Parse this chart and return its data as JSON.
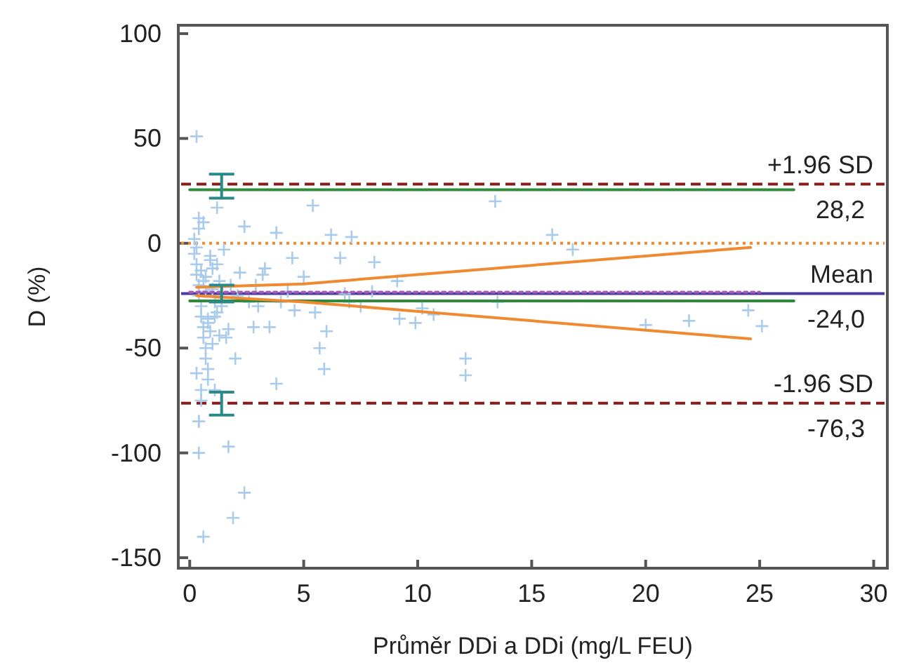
{
  "chart_data": {
    "type": "scatter",
    "xlabel": "Průměr DDi a DDi (mg/L FEU)",
    "ylabel": "D  (%)",
    "xlim": [
      -0.5,
      30.6
    ],
    "ylim": [
      -155,
      104
    ],
    "xticks": [
      0,
      5,
      10,
      15,
      20,
      25,
      30
    ],
    "yticks": [
      -150,
      -100,
      -50,
      0,
      50,
      100
    ],
    "series": [
      {
        "marker": "cross",
        "color": "#a9cbec",
        "x": [
          0.3,
          0.4,
          0.6,
          1.9,
          2.4,
          1.7,
          0.4,
          3.8,
          5.4,
          1.2,
          5.9,
          5.7,
          6.0,
          8.1,
          7.1,
          6.2,
          3.8,
          2.4,
          4.5,
          6.6,
          5.0,
          3.5,
          2.0,
          4.6,
          2.8,
          1.7,
          1.1,
          0.4,
          13.4,
          15.9,
          16.8,
          12.1,
          12.1,
          24.5,
          25.1,
          10.2,
          9.2,
          9.9,
          10.7,
          9.1,
          5.5,
          7.0,
          7.5,
          6.8,
          8.0,
          13.5,
          21.9,
          20.0,
          0.2,
          0.3,
          0.3,
          0.4,
          0.4,
          0.5,
          0.5,
          0.6,
          0.6,
          0.7,
          0.7,
          0.8,
          0.8,
          0.9,
          1.0,
          1.0,
          1.1,
          1.2,
          1.3,
          1.4,
          1.5,
          1.6,
          0.2,
          0.3,
          0.4,
          0.5,
          0.6,
          0.7,
          0.8,
          0.9,
          1.0,
          1.2,
          1.4,
          1.8,
          2.1,
          2.2,
          2.6,
          3.0,
          3.2,
          0.3,
          0.5,
          0.6,
          0.9,
          1.1,
          0.4,
          0.7,
          0.5,
          0.8,
          1.3,
          2.9,
          3.3,
          4.0,
          4.3
        ],
        "values": [
          51,
          -100,
          -140,
          -131,
          -119,
          -97,
          -85,
          -67,
          18,
          17,
          -60,
          -50,
          -42,
          -9,
          3,
          4,
          5,
          8,
          -7,
          -7,
          -16,
          -40,
          -55,
          -32,
          -40,
          -41,
          -70,
          -85,
          20,
          4,
          -3,
          -55,
          -63,
          -32,
          -39.5,
          -31,
          -36,
          -38,
          -34,
          -18,
          -33,
          -28,
          -30,
          -24,
          -23,
          -28,
          -37,
          -39,
          -5,
          -10,
          -15,
          -20,
          -25,
          -30,
          -35,
          -40,
          -45,
          -50,
          -55,
          -60,
          -65,
          -8,
          -12,
          -22,
          -28,
          -33,
          -18,
          -26,
          -3,
          -45,
          2,
          -2,
          7,
          -13,
          -18,
          -23,
          -38,
          -42,
          -48,
          -10,
          -30,
          -20,
          -25,
          -14,
          -28,
          -30,
          -15,
          -62,
          -70,
          10,
          -6,
          -35,
          12,
          -16,
          -75,
          -36,
          -44,
          -20,
          -12,
          -28,
          -23
        ]
      },
      {
        "type": "line",
        "color": "#2e8b3a",
        "x": [
          0,
          26.5
        ],
        "values": [
          25.5,
          25.5
        ]
      },
      {
        "type": "line",
        "color": "#2e8b3a",
        "x": [
          0,
          26.5
        ],
        "values": [
          -27.5,
          -27.5
        ]
      },
      {
        "type": "line",
        "color": "#a55ab8",
        "line_style": "dotted",
        "x": [
          0,
          25
        ],
        "values": [
          -23.3,
          -23.3
        ]
      },
      {
        "type": "line",
        "color": "#f08a30",
        "x": [
          0.3,
          5,
          24.6
        ],
        "values": [
          -21,
          -19.4,
          -2
        ]
      },
      {
        "type": "line",
        "color": "#f08a30",
        "x": [
          0.3,
          5,
          24.6
        ],
        "values": [
          -25,
          -28,
          -45.6
        ]
      },
      {
        "type": "scatter",
        "color": "#2a8a8a",
        "x": [
          1.4,
          1.4,
          1.4
        ],
        "values": [
          28.2,
          -24.0,
          -76.3
        ],
        "errors": [
          [
            21.5,
            33
          ],
          [
            -28,
            -20
          ],
          [
            -82,
            -71
          ]
        ]
      }
    ],
    "ref_lines": [
      {
        "axis": "y",
        "value": 28.2,
        "label": "+1.96 SD",
        "color": "#8b1a1a",
        "line_style": "dashed"
      },
      {
        "axis": "y",
        "value": 0,
        "color": "#f08a30",
        "line_style": "dotted"
      },
      {
        "axis": "y",
        "value": -24.0,
        "label": "Mean",
        "color": "#4a3c9c",
        "line_style": "solid"
      },
      {
        "axis": "y",
        "value": -76.3,
        "label": "-1.96 SD",
        "color": "#8b1a1a",
        "line_style": "dashed"
      }
    ],
    "annotations": [
      {
        "text": "28,2",
        "y": 28.2
      },
      {
        "text": "-24,0",
        "y": -24.0
      },
      {
        "text": "-76,3",
        "y": -76.3
      }
    ]
  }
}
